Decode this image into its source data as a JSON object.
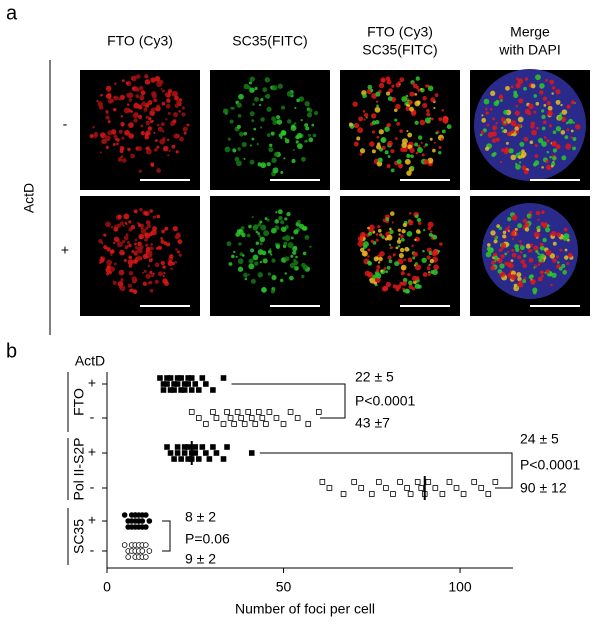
{
  "panel_a": {
    "label": "a",
    "columns": [
      [
        "FTO (Cy3)"
      ],
      [
        "SC35(FITC)"
      ],
      [
        "FTO (Cy3)",
        "SC35(FITC)"
      ],
      [
        "Merge",
        "with DAPI"
      ]
    ],
    "row_factor": "ActD",
    "rows": [
      "-",
      "+"
    ]
  },
  "chart_data": {
    "type": "strip",
    "panel_label": "b",
    "ylabel": "ActD",
    "xlabel": "Number of foci per cell",
    "xlim": [
      0,
      115
    ],
    "xticks": [
      0,
      50,
      100
    ],
    "groups": [
      {
        "label": "FTO",
        "rows": [
          {
            "sign": "+",
            "marker": "filled-square",
            "values": [
              15,
              16,
              16,
              17,
              17,
              18,
              18,
              19,
              19,
              20,
              20,
              21,
              21,
              22,
              22,
              23,
              23,
              24,
              24,
              25,
              26,
              27,
              28,
              30,
              33
            ]
          },
          {
            "sign": "-",
            "marker": "open-square",
            "values": [
              24,
              26,
              28,
              30,
              31,
              33,
              34,
              35,
              36,
              37,
              38,
              39,
              40,
              41,
              42,
              43,
              44,
              45,
              46,
              48,
              50,
              52,
              54,
              57,
              60
            ]
          }
        ],
        "annotation": [
          "22 ± 5",
          "P<0.0001",
          "43 ±7"
        ]
      },
      {
        "label": "Pol II-S2P",
        "rows": [
          {
            "sign": "+",
            "marker": "filled-square",
            "mean": 24,
            "values": [
              17,
              18,
              19,
              20,
              20,
              21,
              22,
              22,
              23,
              23,
              24,
              24,
              25,
              25,
              26,
              27,
              28,
              29,
              30,
              31,
              33,
              34,
              41
            ]
          },
          {
            "sign": "-",
            "marker": "open-square",
            "mean": 90,
            "values": [
              61,
              63,
              67,
              70,
              72,
              75,
              77,
              79,
              81,
              83,
              85,
              86,
              88,
              89,
              90,
              91,
              93,
              95,
              97,
              99,
              101,
              104,
              106,
              108,
              110
            ]
          }
        ],
        "annotation": [
          "24 ± 5",
          "P<0.0001",
          "90 ± 12"
        ]
      },
      {
        "label": "SC35",
        "rows": [
          {
            "sign": "+",
            "marker": "filled-circle",
            "values": [
              5,
              6,
              6,
              7,
              7,
              7,
              8,
              8,
              8,
              8,
              9,
              9,
              9,
              9,
              10,
              10,
              10,
              11,
              11,
              12
            ]
          },
          {
            "sign": "-",
            "marker": "open-circle",
            "values": [
              5,
              6,
              6,
              7,
              7,
              8,
              8,
              8,
              9,
              9,
              9,
              10,
              10,
              10,
              11,
              11,
              12
            ]
          }
        ],
        "annotation": [
          "8 ± 2",
          "P=0.06",
          "9 ± 2"
        ]
      }
    ]
  }
}
